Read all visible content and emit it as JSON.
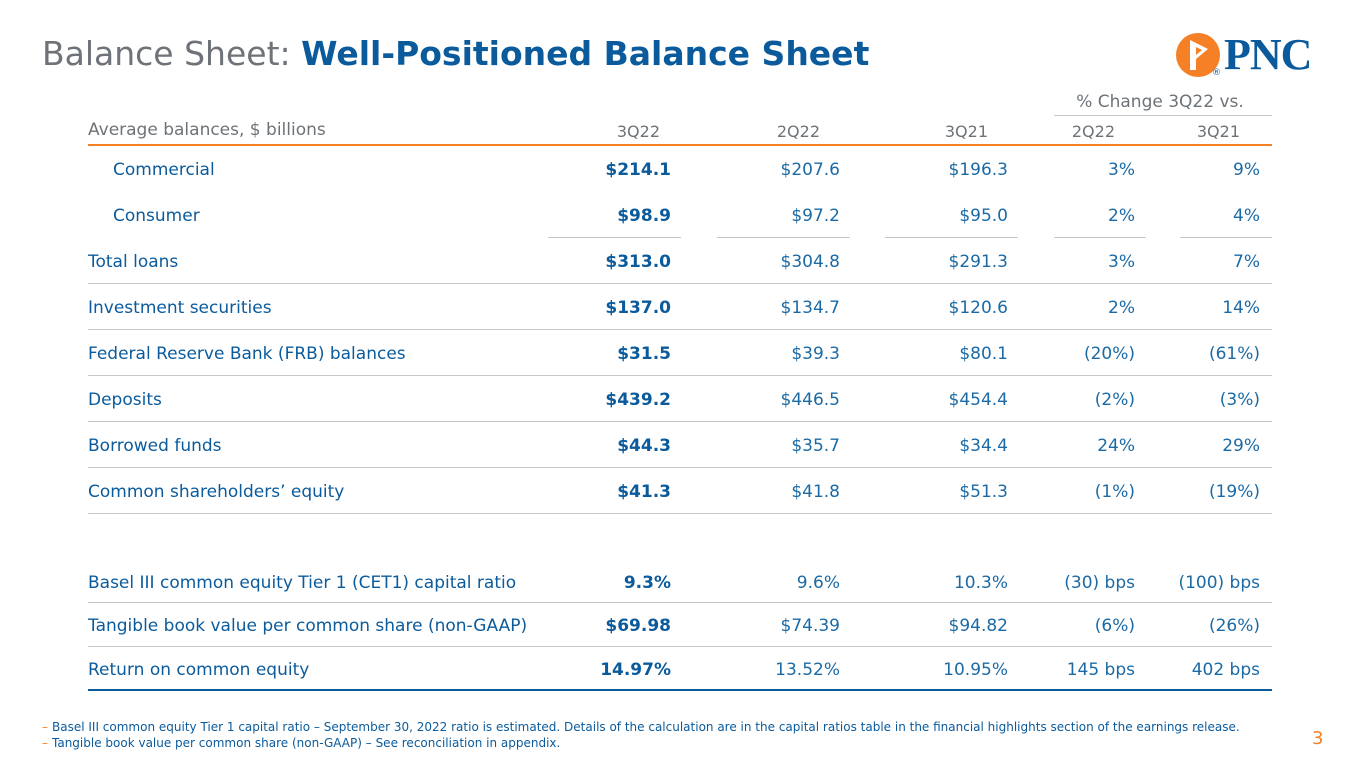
{
  "title": {
    "light": "Balance Sheet:",
    "bold": "Well-Positioned Balance Sheet"
  },
  "logo": {
    "text": "PNC",
    "mark": "®"
  },
  "table": {
    "units_label": "Average balances, $ billions",
    "change_group_label": "% Change 3Q22 vs.",
    "columns": [
      "3Q22",
      "2Q22",
      "3Q21",
      "2Q22",
      "3Q21"
    ],
    "rows": [
      {
        "label": "Commercial",
        "v1": "$214.1",
        "v2": "$207.6",
        "v3": "$196.3",
        "c1": "3%",
        "c2": "9%"
      },
      {
        "label": "Consumer",
        "v1": "$98.9",
        "v2": "$97.2",
        "v3": "$95.0",
        "c1": "2%",
        "c2": "4%"
      },
      {
        "label": "Total loans",
        "v1": "$313.0",
        "v2": "$304.8",
        "v3": "$291.3",
        "c1": "3%",
        "c2": "7%"
      },
      {
        "label": "Investment securities",
        "v1": "$137.0",
        "v2": "$134.7",
        "v3": "$120.6",
        "c1": "2%",
        "c2": "14%"
      },
      {
        "label": "Federal Reserve Bank (FRB) balances",
        "v1": "$31.5",
        "v2": "$39.3",
        "v3": "$80.1",
        "c1": "(20%)",
        "c2": "(61%)"
      },
      {
        "label": "Deposits",
        "v1": "$439.2",
        "v2": "$446.5",
        "v3": "$454.4",
        "c1": "(2%)",
        "c2": "(3%)"
      },
      {
        "label": "Borrowed funds",
        "v1": "$44.3",
        "v2": "$35.7",
        "v3": "$34.4",
        "c1": "24%",
        "c2": "29%"
      },
      {
        "label": "Common shareholders’ equity",
        "v1": "$41.3",
        "v2": "$41.8",
        "v3": "$51.3",
        "c1": "(1%)",
        "c2": "(19%)"
      },
      {
        "label": "Basel III common equity Tier 1 (CET1) capital ratio",
        "v1": "9.3%",
        "v2": "9.6%",
        "v3": "10.3%",
        "c1": "(30) bps",
        "c2": "(100) bps"
      },
      {
        "label": "Tangible book value per common share (non-GAAP)",
        "v1": "$69.98",
        "v2": "$74.39",
        "v3": "$94.82",
        "c1": "(6%)",
        "c2": "(26%)"
      },
      {
        "label": "Return on common equity",
        "v1": "14.97%",
        "v2": "13.52%",
        "v3": "10.95%",
        "c1": "145 bps",
        "c2": "402 bps"
      }
    ]
  },
  "footnotes": [
    "Basel III common equity Tier 1 capital ratio – September 30, 2022 ratio is estimated. Details of the calculation are in the capital ratios table in the financial highlights section of the earnings release.",
    "Tangible book value per common share (non-GAAP) – See reconciliation in appendix."
  ],
  "footnote_marker": "–",
  "page_number": "3",
  "colors": {
    "brand_blue": "#0b5b9c",
    "brand_orange": "#f58025",
    "gray": "#6d7378"
  }
}
